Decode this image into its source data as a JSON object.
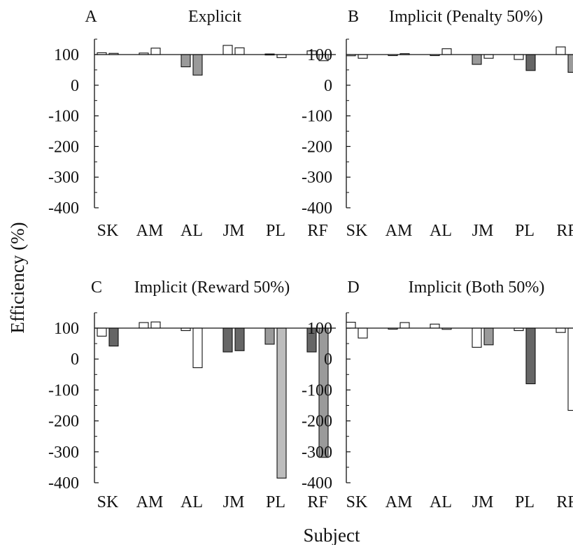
{
  "figure": {
    "ylabel": "Efficiency (%)",
    "xlabel": "Subject"
  },
  "colors": {
    "axis": "#111111",
    "white_bar": "#ffffff",
    "light_gray_bar": "#bdbdbd",
    "mid_gray_bar": "#9a9a9a",
    "dark_gray_bar": "#666666"
  },
  "chart_data": [
    {
      "type": "bar",
      "letter": "A",
      "title": "Explicit",
      "categories": [
        "SK",
        "AM",
        "AL",
        "JM",
        "PL",
        "RF"
      ],
      "yticks": [
        "100",
        "0",
        "-100",
        "-200",
        "-300",
        "-400"
      ],
      "ylim": [
        -400,
        100
      ],
      "baseline": 100,
      "grid": false,
      "series": [
        {
          "values": [
            106,
            105,
            60,
            130,
            102,
            112
          ],
          "fills": [
            "white",
            "white",
            "mid",
            "white",
            "white",
            "white"
          ]
        },
        {
          "values": [
            104,
            121,
            33,
            122,
            90,
            80
          ],
          "fills": [
            "white",
            "white",
            "mid",
            "white",
            "white",
            "white"
          ]
        }
      ]
    },
    {
      "type": "bar",
      "letter": "B",
      "title": "Implicit (Penalty 50%)",
      "categories": [
        "SK",
        "AM",
        "AL",
        "JM",
        "PL",
        "RF"
      ],
      "yticks": [
        "100",
        "0",
        "-100",
        "-200",
        "-300",
        "-400"
      ],
      "ylim": [
        -400,
        100
      ],
      "baseline": 100,
      "grid": false,
      "series": [
        {
          "values": [
            96,
            97,
            97,
            68,
            84,
            125
          ],
          "fills": [
            "white",
            "white",
            "white",
            "mid",
            "white",
            "white"
          ]
        },
        {
          "values": [
            88,
            103,
            119,
            88,
            48,
            42
          ],
          "fills": [
            "white",
            "white",
            "white",
            "white",
            "dark",
            "mid"
          ]
        }
      ]
    },
    {
      "type": "bar",
      "letter": "C",
      "title": "Implicit (Reward 50%)",
      "categories": [
        "SK",
        "AM",
        "AL",
        "JM",
        "PL",
        "RF"
      ],
      "yticks": [
        "100",
        "0",
        "-100",
        "-200",
        "-300",
        "-400"
      ],
      "ylim": [
        -400,
        100
      ],
      "baseline": 100,
      "grid": false,
      "series": [
        {
          "values": [
            74,
            118,
            92,
            23,
            48,
            23
          ],
          "fills": [
            "white",
            "white",
            "white",
            "dark",
            "mid",
            "dark"
          ]
        },
        {
          "values": [
            42,
            120,
            -28,
            27,
            -385,
            -318
          ],
          "fills": [
            "dark",
            "white",
            "white",
            "dark",
            "light",
            "mid"
          ]
        }
      ]
    },
    {
      "type": "bar",
      "letter": "D",
      "title": "Implicit (Both 50%)",
      "categories": [
        "SK",
        "AM",
        "AL",
        "JM",
        "PL",
        "RF"
      ],
      "yticks": [
        "100",
        "0",
        "-100",
        "-200",
        "-300",
        "-400"
      ],
      "ylim": [
        -400,
        100
      ],
      "baseline": 100,
      "grid": false,
      "series": [
        {
          "values": [
            119,
            97,
            113,
            38,
            92,
            86
          ],
          "fills": [
            "white",
            "white",
            "white",
            "white",
            "white",
            "white"
          ]
        },
        {
          "values": [
            68,
            118,
            96,
            46,
            -80,
            -166
          ],
          "fills": [
            "white",
            "white",
            "white",
            "mid",
            "dark",
            "white"
          ]
        }
      ]
    }
  ]
}
